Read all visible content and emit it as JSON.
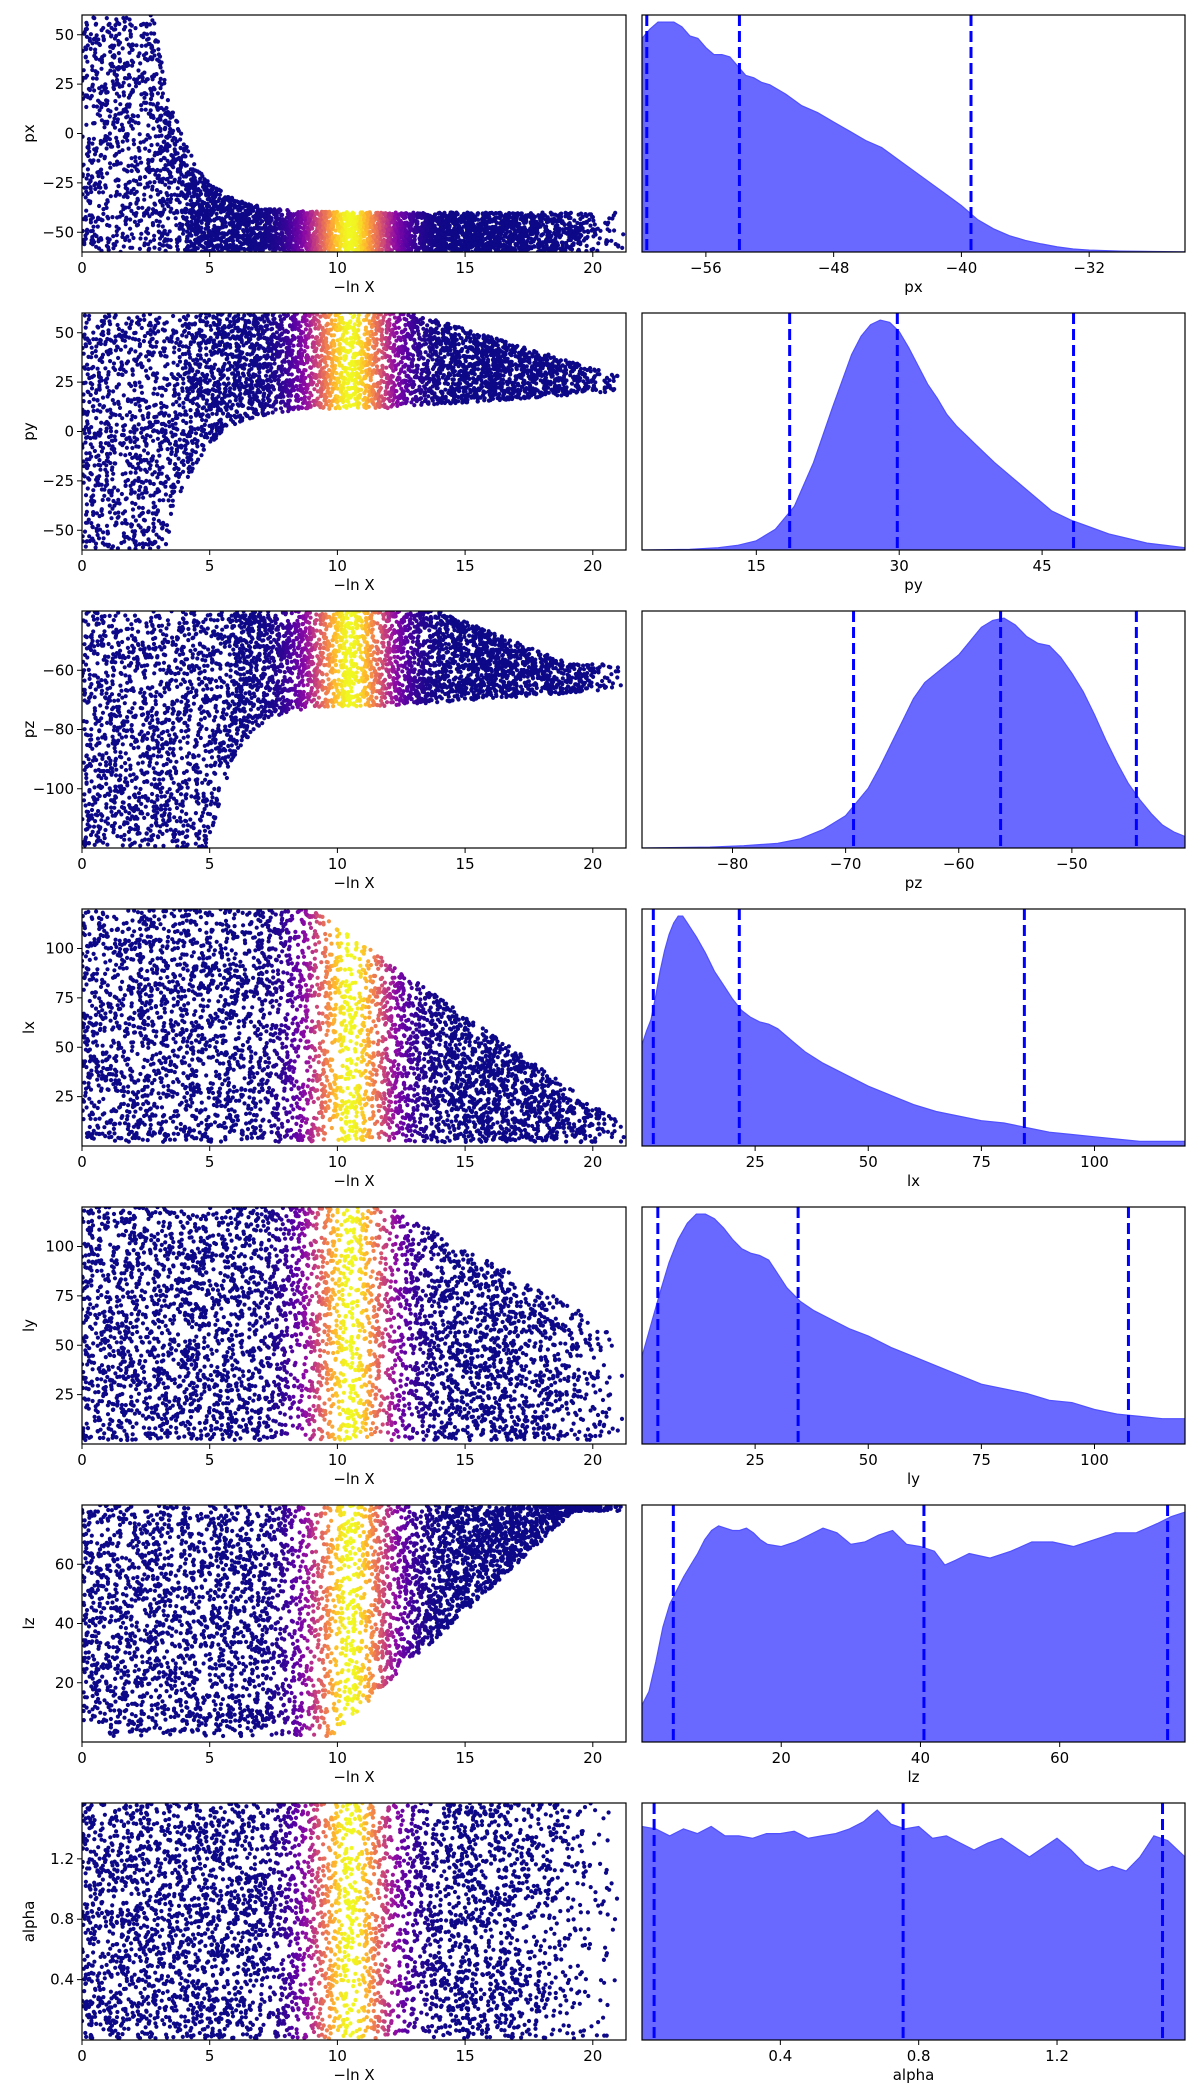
{
  "figure": {
    "scatter_xlabel": "−ln X",
    "colormap": "plasma",
    "kde_fill_color": "#6666ff",
    "kde_line_color": "#5050ff",
    "quantile_line_color": "#0000ff",
    "scatter_base_color": "#0d0887"
  },
  "chart_data": [
    {
      "type": "scatter",
      "param": "px",
      "ylabel": "px",
      "xlabel": "−ln X",
      "xlim": [
        0,
        21.3
      ],
      "ylim": [
        -60,
        60
      ],
      "xticks": [
        "0",
        "5",
        "10",
        "15",
        "20"
      ],
      "yticks": [
        "−50",
        "−25",
        "0",
        "25",
        "50"
      ],
      "ytick_values": [
        -50,
        -25,
        0,
        25,
        50
      ],
      "xtick_values": [
        0,
        5,
        10,
        15,
        20
      ],
      "color_peak_x": 10.5,
      "band_shape": "decay",
      "note_color": "plasma"
    },
    {
      "type": "area",
      "param": "px",
      "xlabel": "px",
      "xlim": [
        -60,
        -26
      ],
      "xticks": [
        "−56",
        "−48",
        "−40",
        "−32"
      ],
      "xtick_values": [
        -56,
        -48,
        -40,
        -32
      ],
      "x": [
        -60,
        -59.5,
        -59,
        -58,
        -57.5,
        -57,
        -56.5,
        -56,
        -55.5,
        -55,
        -54.5,
        -54,
        -53.5,
        -53,
        -52.5,
        -52,
        -51,
        -50,
        -49,
        -48,
        -47,
        -46,
        -45,
        -44,
        -43,
        -42,
        -41,
        -40,
        -39,
        -38,
        -37,
        -36,
        -35,
        -34,
        -33,
        -32,
        -30,
        -28,
        -26
      ],
      "density": [
        0.92,
        0.96,
        0.99,
        0.99,
        0.97,
        0.93,
        0.92,
        0.88,
        0.85,
        0.85,
        0.84,
        0.8,
        0.76,
        0.75,
        0.73,
        0.72,
        0.68,
        0.63,
        0.6,
        0.56,
        0.52,
        0.48,
        0.45,
        0.4,
        0.35,
        0.3,
        0.25,
        0.2,
        0.14,
        0.1,
        0.07,
        0.05,
        0.035,
        0.022,
        0.013,
        0.008,
        0.004,
        0.002,
        0.001
      ],
      "quantiles": [
        -59.7,
        -53.9,
        -39.4
      ]
    },
    {
      "type": "scatter",
      "param": "py",
      "ylabel": "py",
      "xlabel": "−ln X",
      "xlim": [
        0,
        21.3
      ],
      "ylim": [
        -60,
        60
      ],
      "xticks": [
        "0",
        "5",
        "10",
        "15",
        "20"
      ],
      "yticks": [
        "−50",
        "−25",
        "0",
        "25",
        "50"
      ],
      "ytick_values": [
        -50,
        -25,
        0,
        25,
        50
      ],
      "xtick_values": [
        0,
        5,
        10,
        15,
        20
      ],
      "color_peak_x": 10.5,
      "band_shape": "converge_up",
      "note_color": "plasma"
    },
    {
      "type": "area",
      "param": "py",
      "xlabel": "py",
      "xlim": [
        3,
        60
      ],
      "xticks": [
        "15",
        "30",
        "45"
      ],
      "xtick_values": [
        15,
        30,
        45
      ],
      "x": [
        3,
        8,
        11,
        13,
        15,
        17,
        19,
        21,
        23,
        25,
        26,
        27,
        28,
        29,
        30,
        31,
        32,
        33,
        34,
        35,
        36,
        37,
        38,
        40,
        42,
        44,
        46,
        48,
        50,
        52,
        54,
        56,
        58,
        60
      ],
      "density": [
        0.0,
        0.003,
        0.01,
        0.02,
        0.04,
        0.09,
        0.19,
        0.38,
        0.62,
        0.85,
        0.93,
        0.98,
        1.0,
        0.99,
        0.95,
        0.88,
        0.8,
        0.72,
        0.66,
        0.59,
        0.54,
        0.5,
        0.46,
        0.38,
        0.31,
        0.24,
        0.17,
        0.13,
        0.1,
        0.07,
        0.05,
        0.03,
        0.02,
        0.01
      ],
      "quantiles": [
        18.5,
        29.8,
        48.3
      ]
    },
    {
      "type": "scatter",
      "param": "pz",
      "ylabel": "pz",
      "xlabel": "−ln X",
      "xlim": [
        0,
        21.3
      ],
      "ylim": [
        -120,
        -40
      ],
      "xticks": [
        "0",
        "5",
        "10",
        "15",
        "20"
      ],
      "yticks": [
        "−100",
        "−80",
        "−60"
      ],
      "ytick_values": [
        -100,
        -80,
        -60
      ],
      "xtick_values": [
        0,
        5,
        10,
        15,
        20
      ],
      "color_peak_x": 10.5,
      "band_shape": "converge_up_pz",
      "note_color": "plasma"
    },
    {
      "type": "area",
      "param": "pz",
      "xlabel": "pz",
      "xlim": [
        -88,
        -40
      ],
      "xticks": [
        "−80",
        "−70",
        "−60",
        "−50"
      ],
      "xtick_values": [
        -80,
        -70,
        -60,
        -50
      ],
      "x": [
        -88,
        -82,
        -79,
        -76,
        -74,
        -72,
        -70,
        -69,
        -68,
        -67,
        -66,
        -65,
        -64,
        -63,
        -62,
        -61,
        -60,
        -59,
        -58,
        -57,
        -56,
        -55,
        -54,
        -53,
        -52,
        -51,
        -50,
        -49,
        -48,
        -47,
        -46,
        -45,
        -44,
        -43,
        -42,
        -41,
        -40
      ],
      "density": [
        0.0,
        0.004,
        0.01,
        0.02,
        0.04,
        0.08,
        0.14,
        0.2,
        0.26,
        0.35,
        0.45,
        0.55,
        0.65,
        0.72,
        0.76,
        0.8,
        0.84,
        0.9,
        0.96,
        0.99,
        1.0,
        0.97,
        0.92,
        0.89,
        0.88,
        0.83,
        0.76,
        0.68,
        0.58,
        0.47,
        0.37,
        0.28,
        0.21,
        0.15,
        0.1,
        0.07,
        0.05
      ],
      "quantiles": [
        -69.3,
        -56.3,
        -44.3
      ]
    },
    {
      "type": "scatter",
      "param": "lx",
      "ylabel": "lx",
      "xlabel": "−ln X",
      "xlim": [
        0,
        21.3
      ],
      "ylim": [
        0,
        120
      ],
      "xticks": [
        "0",
        "5",
        "10",
        "15",
        "20"
      ],
      "yticks": [
        "25",
        "50",
        "75",
        "100"
      ],
      "ytick_values": [
        25,
        50,
        75,
        100
      ],
      "xtick_values": [
        0,
        5,
        10,
        15,
        20
      ],
      "color_peak_x": 10.5,
      "band_shape": "uniform_lx",
      "note_color": "plasma"
    },
    {
      "type": "area",
      "param": "lx",
      "xlabel": "lx",
      "xlim": [
        0,
        120
      ],
      "xticks": [
        "25",
        "50",
        "75",
        "100"
      ],
      "xtick_values": [
        25,
        50,
        75,
        100
      ],
      "x": [
        0,
        1,
        2,
        3,
        4,
        5,
        6,
        7,
        8,
        9,
        10,
        11,
        12,
        14,
        16,
        18,
        20,
        22,
        24,
        26,
        28,
        30,
        33,
        36,
        40,
        45,
        50,
        55,
        60,
        65,
        70,
        75,
        80,
        85,
        90,
        95,
        100,
        105,
        110,
        115,
        120
      ],
      "density": [
        0.44,
        0.5,
        0.55,
        0.65,
        0.76,
        0.85,
        0.92,
        0.97,
        1.0,
        1.0,
        0.97,
        0.94,
        0.91,
        0.84,
        0.76,
        0.7,
        0.64,
        0.59,
        0.56,
        0.54,
        0.53,
        0.51,
        0.46,
        0.41,
        0.36,
        0.31,
        0.26,
        0.22,
        0.18,
        0.15,
        0.13,
        0.11,
        0.1,
        0.08,
        0.06,
        0.05,
        0.04,
        0.03,
        0.02,
        0.02,
        0.02
      ],
      "quantiles": [
        2.5,
        21.5,
        84.5
      ]
    },
    {
      "type": "scatter",
      "param": "ly",
      "ylabel": "ly",
      "xlabel": "−ln X",
      "xlim": [
        0,
        21.3
      ],
      "ylim": [
        0,
        120
      ],
      "xticks": [
        "0",
        "5",
        "10",
        "15",
        "20"
      ],
      "yticks": [
        "25",
        "50",
        "75",
        "100"
      ],
      "ytick_values": [
        25,
        50,
        75,
        100
      ],
      "xtick_values": [
        0,
        5,
        10,
        15,
        20
      ],
      "color_peak_x": 10.5,
      "band_shape": "uniform_ly",
      "note_color": "plasma"
    },
    {
      "type": "area",
      "param": "ly",
      "xlabel": "ly",
      "xlim": [
        0,
        120
      ],
      "xticks": [
        "25",
        "50",
        "75",
        "100"
      ],
      "xtick_values": [
        25,
        50,
        75,
        100
      ],
      "x": [
        0,
        2,
        4,
        6,
        8,
        10,
        12,
        14,
        16,
        18,
        20,
        22,
        24,
        26,
        28,
        30,
        32,
        35,
        38,
        42,
        46,
        50,
        55,
        60,
        65,
        70,
        75,
        80,
        85,
        90,
        95,
        100,
        105,
        110,
        115,
        120
      ],
      "density": [
        0.38,
        0.52,
        0.66,
        0.79,
        0.89,
        0.96,
        1.0,
        1.0,
        0.98,
        0.94,
        0.89,
        0.85,
        0.83,
        0.82,
        0.8,
        0.74,
        0.68,
        0.62,
        0.58,
        0.54,
        0.5,
        0.47,
        0.42,
        0.38,
        0.34,
        0.3,
        0.26,
        0.24,
        0.22,
        0.19,
        0.18,
        0.15,
        0.13,
        0.12,
        0.11,
        0.11
      ],
      "quantiles": [
        3.5,
        34.5,
        107.5
      ]
    },
    {
      "type": "scatter",
      "param": "lz",
      "ylabel": "lz",
      "xlabel": "−ln X",
      "xlim": [
        0,
        21.3
      ],
      "ylim": [
        0,
        80
      ],
      "xticks": [
        "0",
        "5",
        "10",
        "15",
        "20"
      ],
      "yticks": [
        "20",
        "40",
        "60"
      ],
      "ytick_values": [
        20,
        40,
        60
      ],
      "xtick_values": [
        0,
        5,
        10,
        15,
        20
      ],
      "color_peak_x": 10.5,
      "band_shape": "diverge_lz",
      "note_color": "plasma"
    },
    {
      "type": "area",
      "param": "lz",
      "xlabel": "lz",
      "xlim": [
        0,
        78
      ],
      "xticks": [
        "20",
        "40",
        "60"
      ],
      "xtick_values": [
        20,
        40,
        60
      ],
      "x": [
        0,
        1,
        2,
        3,
        4,
        5,
        6,
        7,
        8,
        9,
        10,
        11,
        12,
        13,
        14,
        15,
        16,
        17,
        18,
        20,
        22,
        24,
        26,
        28,
        30,
        32,
        34,
        36,
        38,
        40,
        42,
        43.5,
        45,
        47,
        50,
        53,
        56,
        59,
        62,
        65,
        68,
        71,
        74,
        76,
        78
      ],
      "density": [
        0.16,
        0.22,
        0.35,
        0.5,
        0.6,
        0.66,
        0.72,
        0.77,
        0.82,
        0.88,
        0.92,
        0.94,
        0.93,
        0.92,
        0.92,
        0.93,
        0.91,
        0.88,
        0.86,
        0.85,
        0.87,
        0.9,
        0.93,
        0.91,
        0.86,
        0.87,
        0.9,
        0.92,
        0.86,
        0.85,
        0.83,
        0.77,
        0.79,
        0.82,
        0.8,
        0.83,
        0.87,
        0.87,
        0.85,
        0.88,
        0.91,
        0.91,
        0.95,
        0.98,
        1.0
      ],
      "quantiles": [
        4.5,
        40.5,
        75.5
      ]
    },
    {
      "type": "scatter",
      "param": "alpha",
      "ylabel": "alpha",
      "xlabel": "−ln X",
      "xlim": [
        0,
        21.3
      ],
      "ylim": [
        0,
        1.57
      ],
      "xticks": [
        "0",
        "5",
        "10",
        "15",
        "20"
      ],
      "yticks": [
        "0.4",
        "0.8",
        "1.2"
      ],
      "ytick_values": [
        0.4,
        0.8,
        1.2
      ],
      "xtick_values": [
        0,
        5,
        10,
        15,
        20
      ],
      "color_peak_x": 10.5,
      "band_shape": "uniform_alpha",
      "note_color": "plasma"
    },
    {
      "type": "area",
      "param": "alpha",
      "xlabel": "alpha",
      "xlim": [
        0,
        1.57
      ],
      "xticks": [
        "0.4",
        "0.8",
        "1.2"
      ],
      "xtick_values": [
        0.4,
        0.8,
        1.2
      ],
      "x": [
        0,
        0.04,
        0.08,
        0.12,
        0.16,
        0.2,
        0.24,
        0.28,
        0.32,
        0.36,
        0.4,
        0.44,
        0.48,
        0.52,
        0.56,
        0.6,
        0.64,
        0.68,
        0.72,
        0.76,
        0.8,
        0.84,
        0.88,
        0.92,
        0.96,
        1.0,
        1.04,
        1.08,
        1.12,
        1.16,
        1.2,
        1.24,
        1.28,
        1.32,
        1.36,
        1.4,
        1.44,
        1.48,
        1.52,
        1.57
      ],
      "density": [
        0.91,
        0.9,
        0.87,
        0.9,
        0.88,
        0.91,
        0.87,
        0.87,
        0.86,
        0.88,
        0.88,
        0.89,
        0.86,
        0.87,
        0.88,
        0.9,
        0.93,
        0.98,
        0.92,
        0.9,
        0.91,
        0.86,
        0.87,
        0.84,
        0.81,
        0.84,
        0.86,
        0.82,
        0.78,
        0.82,
        0.86,
        0.81,
        0.75,
        0.72,
        0.74,
        0.72,
        0.78,
        0.87,
        0.85,
        0.78
      ],
      "quantiles": [
        0.035,
        0.755,
        1.505
      ]
    }
  ]
}
